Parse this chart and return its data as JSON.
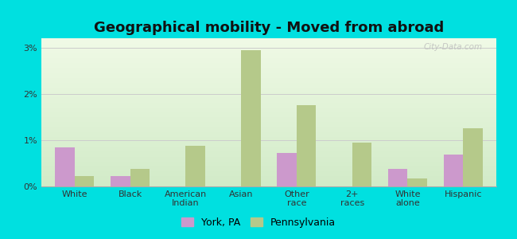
{
  "title": "Geographical mobility - Moved from abroad",
  "categories": [
    "White",
    "Black",
    "American\nIndian",
    "Asian",
    "Other\nrace",
    "2+\nraces",
    "White\nalone",
    "Hispanic"
  ],
  "york_values": [
    0.85,
    0.22,
    0.0,
    0.0,
    0.72,
    0.0,
    0.38,
    0.68
  ],
  "penn_values": [
    0.22,
    0.38,
    0.87,
    2.95,
    1.75,
    0.95,
    0.18,
    1.25
  ],
  "york_color": "#cc99cc",
  "penn_color": "#b5c98a",
  "outer_bg": "#00e0e0",
  "ylim": [
    0,
    3.2
  ],
  "yticks": [
    0,
    1,
    2,
    3
  ],
  "ytick_labels": [
    "0%",
    "1%",
    "2%",
    "3%"
  ],
  "york_label": "York, PA",
  "penn_label": "Pennsylvania",
  "bar_width": 0.35,
  "title_fontsize": 13,
  "legend_fontsize": 9,
  "tick_fontsize": 8,
  "watermark": "City-Data.com"
}
